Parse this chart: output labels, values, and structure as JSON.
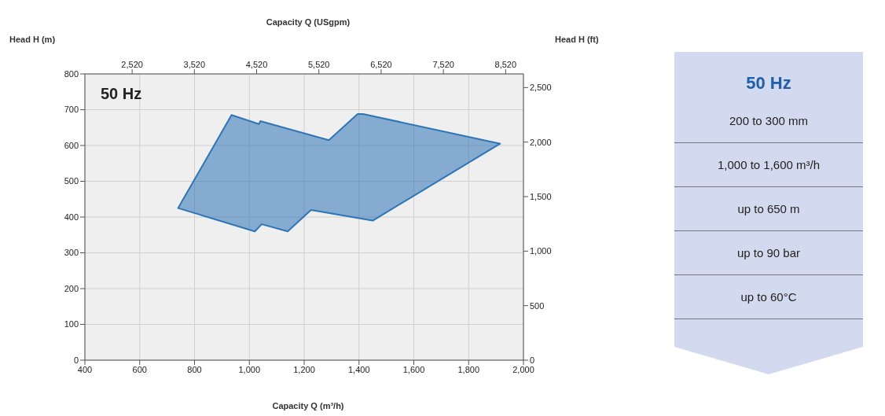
{
  "chart_data": {
    "type": "area",
    "xlabel": "Capacity Q (m³/h)",
    "ylabel": "Head H (m)",
    "x2label": "Capacity Q (USgpm)",
    "y2label": "Head H (ft)",
    "xlim": [
      400,
      2000
    ],
    "xticks": [
      400,
      600,
      800,
      {
        "value": 1000,
        "label": "1,000"
      },
      {
        "value": 1200,
        "label": "1,200"
      },
      {
        "value": 1400,
        "label": "1,400"
      },
      {
        "value": 1600,
        "label": "1,600"
      },
      {
        "value": 1800,
        "label": "1,800"
      },
      {
        "value": 2000,
        "label": "2,000"
      }
    ],
    "ylim": [
      0,
      800
    ],
    "yticks": [
      0,
      100,
      200,
      300,
      400,
      500,
      600,
      700,
      800
    ],
    "x2lim": [
      1761,
      8806
    ],
    "x2ticks": [
      {
        "value": 2520,
        "label": "2,520"
      },
      {
        "value": 3520,
        "label": "3,520"
      },
      {
        "value": 4520,
        "label": "4,520"
      },
      {
        "value": 5520,
        "label": "5,520"
      },
      {
        "value": 6520,
        "label": "6,520"
      },
      {
        "value": 7520,
        "label": "7,520"
      },
      {
        "value": 8520,
        "label": "8,520"
      }
    ],
    "y2lim": [
      0,
      2625
    ],
    "y2ticks": [
      0,
      500,
      {
        "value": 1000,
        "label": "1,000"
      },
      {
        "value": 1500,
        "label": "1,500"
      },
      {
        "value": 2000,
        "label": "2,000"
      },
      {
        "value": 2500,
        "label": "2,500"
      }
    ],
    "grid": true,
    "series": [
      {
        "color": "#2e75b6",
        "x": [
          740,
          935,
          1035,
          1040,
          1290,
          1395,
          1415,
          1915,
          1450,
          1225,
          1140,
          1045,
          1020
        ],
        "values": [
          425,
          685,
          660,
          668,
          615,
          688,
          688,
          605,
          390,
          420,
          360,
          380,
          360
        ]
      }
    ],
    "annotations": [
      "50 Hz",
      "50 Hz",
      "200 to 300 mm",
      "1,000 to 1,600 m³/h",
      "up to 650 m",
      "up to 90 bar",
      "up to 60°C"
    ]
  }
}
